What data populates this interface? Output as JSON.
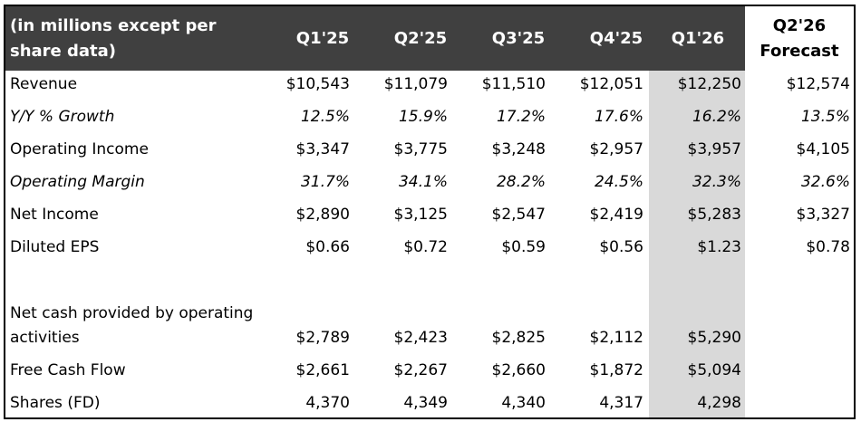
{
  "header": {
    "label": "(in millions except per share data)",
    "periods": [
      "Q1'25",
      "Q2'25",
      "Q3'25",
      "Q4'25",
      "Q1'26"
    ],
    "forecast_line1": "Q2'26",
    "forecast_line2": "Forecast"
  },
  "rows": [
    {
      "label": "Revenue",
      "values": [
        "$10,543",
        "$11,079",
        "$11,510",
        "$12,051",
        "$12,250",
        "$12,574"
      ],
      "italic": false
    },
    {
      "label": "Y/Y % Growth",
      "values": [
        "12.5%",
        "15.9%",
        "17.2%",
        "17.6%",
        "16.2%",
        "13.5%"
      ],
      "italic": true
    },
    {
      "label": "Operating Income",
      "values": [
        "$3,347",
        "$3,775",
        "$3,248",
        "$2,957",
        "$3,957",
        "$4,105"
      ],
      "italic": false
    },
    {
      "label": "Operating Margin",
      "values": [
        "31.7%",
        "34.1%",
        "28.2%",
        "24.5%",
        "32.3%",
        "32.6%"
      ],
      "italic": true
    },
    {
      "label": "Net Income",
      "values": [
        "$2,890",
        "$3,125",
        "$2,547",
        "$2,419",
        "$5,283",
        "$3,327"
      ],
      "italic": false
    },
    {
      "label": "Diluted EPS",
      "values": [
        "$0.66",
        "$0.72",
        "$0.59",
        "$0.56",
        "$1.23",
        "$0.78"
      ],
      "italic": false
    }
  ],
  "cash_rows": [
    {
      "label_line1": "Net cash provided by operating",
      "label_line2": "activities",
      "values": [
        "$2,789",
        "$2,423",
        "$2,825",
        "$2,112",
        "$5,290"
      ]
    },
    {
      "label": "Free Cash Flow",
      "values": [
        "$2,661",
        "$2,267",
        "$2,660",
        "$1,872",
        "$5,094"
      ]
    },
    {
      "label": "Shares (FD)",
      "values": [
        "4,370",
        "4,349",
        "4,340",
        "4,317",
        "4,298"
      ]
    }
  ],
  "colors": {
    "header_bg": "#404040",
    "highlight_column": "#d9d9d9"
  }
}
